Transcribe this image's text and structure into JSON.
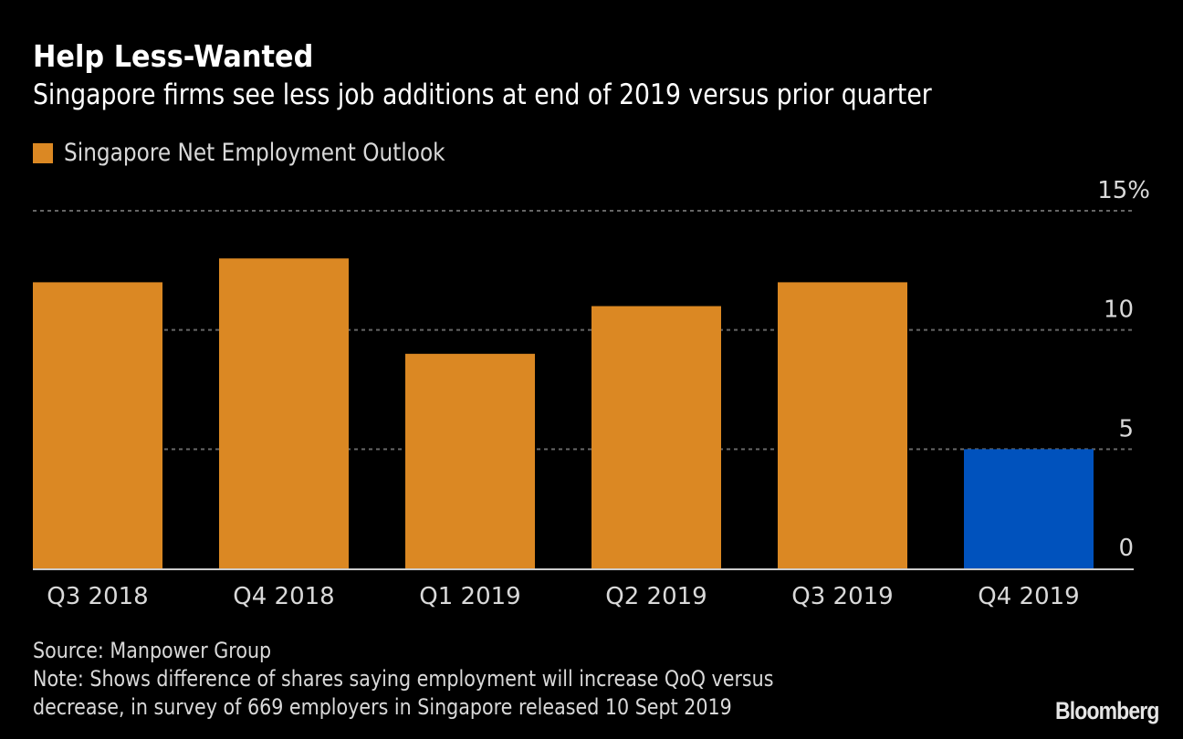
{
  "header": {
    "title": "Help Less-Wanted",
    "subtitle": "Singapore firms see less job additions at end of 2019 versus prior quarter"
  },
  "legend": {
    "label": "Singapore Net Employment Outlook",
    "color": "#DB8823"
  },
  "colors": {
    "default_bar": "#DB8823",
    "highlight_bar": "#0052BD",
    "background": "#000000",
    "gridline": "#666666",
    "axis": "#CCCCCC"
  },
  "footer": {
    "source": "Source: Manpower Group",
    "note_line1": "Note: Shows difference of shares saying employment will increase QoQ versus",
    "note_line2": "decrease, in survey of 669 employers in Singapore released 10 Sept 2019",
    "brand": "Bloomberg"
  },
  "chart_data": {
    "type": "bar",
    "title": "Help Less-Wanted",
    "subtitle": "Singapore firms see less job additions at end of 2019 versus prior quarter",
    "xlabel": "",
    "ylabel": "",
    "categories": [
      "Q3 2018",
      "Q4 2018",
      "Q1 2019",
      "Q2 2019",
      "Q3 2019",
      "Q4 2019"
    ],
    "series": [
      {
        "name": "Singapore Net Employment Outlook",
        "values": [
          12,
          13,
          9,
          11,
          12,
          5
        ],
        "highlight_index": 5
      }
    ],
    "ylim": [
      0,
      15
    ],
    "yticks": [
      0,
      5,
      10,
      15
    ],
    "ytick_labels": [
      "0",
      "5",
      "10",
      "15%"
    ],
    "grid": true,
    "y_axis_side": "right",
    "legend_position": "top-left"
  }
}
